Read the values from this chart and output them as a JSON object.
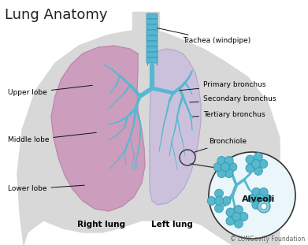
{
  "title": "Lung Anatomy",
  "title_fontsize": 13,
  "background_color": "#ffffff",
  "torso_color": "#d8d8d8",
  "right_lung_color": "#cc98bb",
  "right_lung_edge": "#b882a8",
  "left_lung_color": "#cbbedd",
  "left_lung_edge": "#b0a0cc",
  "bronchi_color": "#55b8d0",
  "bronchi_edge": "#3090b0",
  "trachea_color": "#55b8d0",
  "alveoli_color": "#55b8cc",
  "alveoli_bg": "#eaf6fa",
  "labels": {
    "trachea": "Trachea (windpipe)",
    "primary": "Primary bronchus",
    "secondary": "Secondary bronchus",
    "tertiary": "Tertiary bronchus",
    "bronchiole": "Bronchiole",
    "alveoli": "Alveoli",
    "upper_lobe": "Upper lobe",
    "middle_lobe": "Middle lobe",
    "lower_lobe": "Lower lobe",
    "right_lung": "Right lung",
    "left_lung": "Left lung",
    "copyright": "© LUNGevity Foundation"
  },
  "label_fontsize": 6.5,
  "lung_label_fontsize": 7.5,
  "copyright_fontsize": 5.5
}
